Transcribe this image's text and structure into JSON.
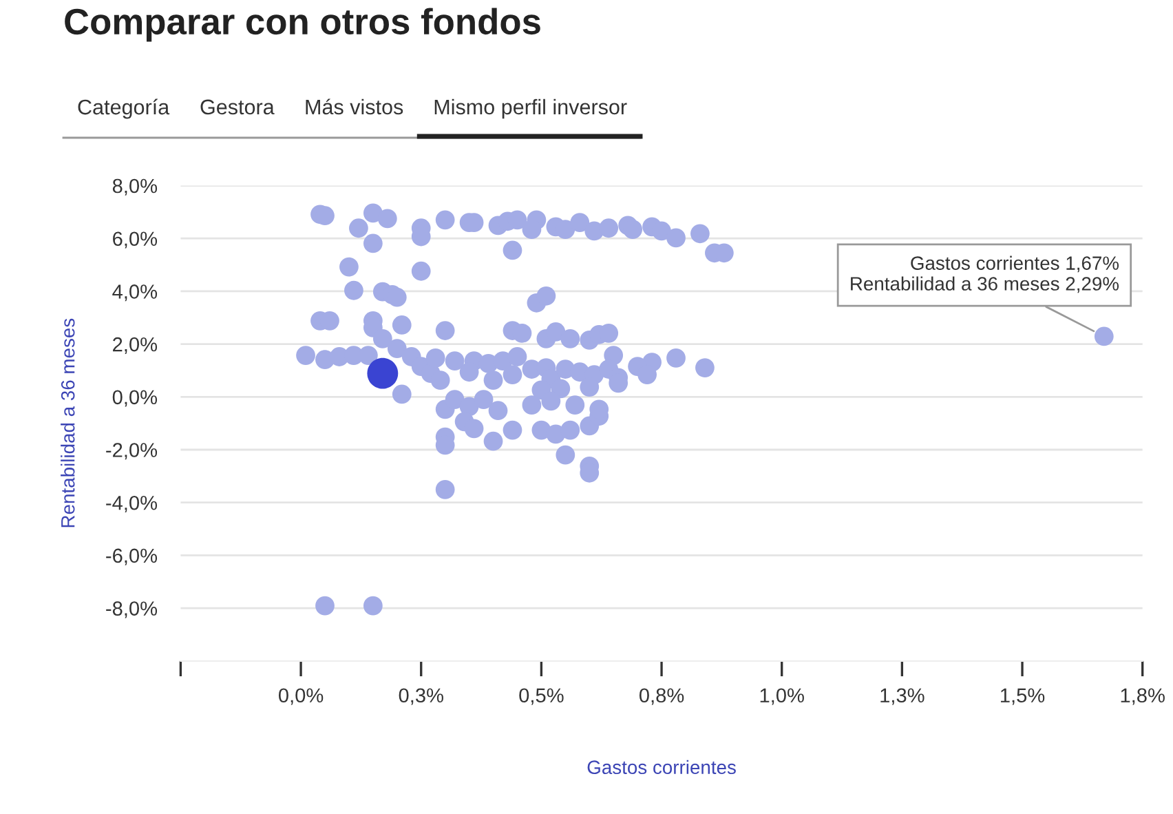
{
  "chart_data": {
    "type": "scatter",
    "title": "Comparar con otros fondos",
    "xlabel": "Gastos corrientes",
    "ylabel": "Rentabilidad a 36 meses",
    "annotations": [
      "Categoría",
      "Gestora",
      "Más vistos",
      "Mismo perfil inversor",
      {
        "text": "Gastos corrientes 1,67%\nRentabilidad a 36 meses 2,29%",
        "x": 1.67,
        "y": 2.29
      }
    ],
    "marker": "circle",
    "grid": "y",
    "legend": false,
    "xlim": [
      -0.25,
      1.75
    ],
    "ylim": [
      -10,
      8
    ],
    "xticks": [
      {
        "value": -0.25,
        "label": null
      },
      {
        "value": 0,
        "label": "0,0%"
      },
      {
        "value": 0.25,
        "label": "0,3%"
      },
      {
        "value": 0.5,
        "label": "0,5%"
      },
      {
        "value": 0.75,
        "label": "0,8%"
      },
      {
        "value": 1.0,
        "label": "1,0%"
      },
      {
        "value": 1.25,
        "label": "1,3%"
      },
      {
        "value": 1.5,
        "label": "1,5%"
      },
      {
        "value": 1.75,
        "label": "1,8%"
      }
    ],
    "yticks": [
      {
        "value": -8,
        "label": "-8,0%"
      },
      {
        "value": -6,
        "label": "-6,0%"
      },
      {
        "value": -4,
        "label": "-4,0%"
      },
      {
        "value": -2,
        "label": "-2,0%"
      },
      {
        "value": 0,
        "label": "0,0%"
      },
      {
        "value": 2,
        "label": "2,0%"
      },
      {
        "value": 4,
        "label": "4,0%"
      },
      {
        "value": 6,
        "label": "6,0%"
      },
      {
        "value": 8,
        "label": "8,0%"
      }
    ],
    "series": [
      {
        "color": "#a3ace6",
        "x": [
          0.04,
          0.05,
          0.15,
          0.18,
          0.12,
          0.25,
          0.25,
          0.3,
          0.35,
          0.36,
          0.41,
          0.43,
          0.45,
          0.49,
          0.53,
          0.55,
          0.58,
          0.61,
          0.64,
          0.68,
          0.69,
          0.73,
          0.75,
          0.78,
          0.83,
          0.86,
          0.44,
          0.48,
          0.1,
          0.15,
          0.25,
          0.11,
          0.17,
          0.19,
          0.2,
          0.49,
          0.51,
          0.88,
          0.04,
          0.06,
          0.15,
          0.15,
          0.21,
          0.3,
          0.44,
          0.46,
          0.51,
          0.53,
          0.56,
          0.6,
          0.62,
          0.64,
          0.65,
          0.73,
          0.78,
          0.84,
          0.17,
          0.01,
          0.05,
          0.08,
          0.11,
          0.14,
          0.2,
          0.23,
          0.25,
          0.27,
          0.21,
          0.28,
          0.32,
          0.36,
          0.39,
          0.42,
          0.45,
          0.29,
          0.35,
          0.4,
          0.44,
          0.48,
          0.51,
          0.52,
          0.55,
          0.58,
          0.61,
          0.64,
          0.66,
          0.7,
          0.72,
          0.66,
          0.54,
          0.5,
          0.6,
          0.3,
          0.32,
          0.35,
          0.38,
          0.41,
          0.34,
          0.3,
          0.3,
          0.36,
          0.4,
          0.44,
          0.5,
          0.53,
          0.56,
          0.6,
          0.62,
          0.55,
          0.6,
          0.6,
          0.3,
          0.05,
          0.15,
          0.48,
          0.52,
          0.57,
          0.62,
          1.67
        ],
        "values": [
          6.91,
          6.86,
          6.96,
          6.75,
          6.39,
          6.39,
          6.07,
          6.7,
          6.6,
          6.6,
          6.49,
          6.65,
          6.7,
          6.7,
          6.44,
          6.34,
          6.6,
          6.28,
          6.39,
          6.49,
          6.34,
          6.44,
          6.28,
          6.02,
          6.18,
          5.45,
          5.55,
          6.34,
          4.92,
          5.81,
          4.76,
          4.03,
          3.98,
          3.87,
          3.77,
          3.56,
          3.82,
          5.45,
          2.88,
          2.88,
          2.88,
          2.62,
          2.72,
          2.51,
          2.51,
          2.41,
          2.2,
          2.46,
          2.2,
          2.15,
          2.36,
          2.41,
          1.57,
          1.31,
          1.47,
          1.1,
          2.2,
          1.57,
          1.41,
          1.52,
          1.57,
          1.57,
          1.83,
          1.52,
          1.15,
          0.89,
          0.1,
          1.47,
          1.36,
          1.36,
          1.26,
          1.36,
          1.52,
          0.63,
          0.94,
          0.63,
          0.84,
          1.05,
          1.1,
          0.68,
          1.05,
          0.94,
          0.84,
          1.05,
          0.73,
          1.15,
          0.84,
          0.52,
          0.31,
          0.26,
          0.37,
          -0.47,
          -0.1,
          -0.37,
          -0.1,
          -0.52,
          -0.94,
          -1.52,
          -1.83,
          -1.2,
          -1.68,
          -1.26,
          -1.26,
          -1.41,
          -1.26,
          -1.1,
          -0.73,
          -2.2,
          -2.62,
          -2.88,
          -3.51,
          -7.91,
          -7.91,
          -0.31,
          -0.16,
          -0.31,
          -0.47,
          2.29
        ]
      },
      {
        "color": "#3a44d2",
        "x": [
          0.17
        ],
        "values": [
          0.89
        ]
      }
    ]
  }
}
